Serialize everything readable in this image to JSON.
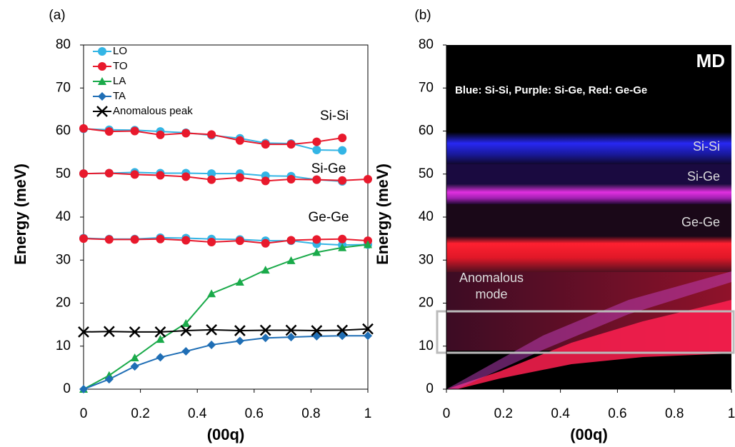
{
  "chart_data": [
    {
      "type": "line",
      "panel": "(a)",
      "ylabel": "Energy (meV)",
      "xlabel": "(00q)",
      "xlim": [
        0,
        1
      ],
      "ylim": [
        0,
        80
      ],
      "xticks": [
        0,
        0.2,
        0.4,
        0.6,
        0.8,
        1
      ],
      "yticks": [
        0,
        10,
        20,
        30,
        40,
        50,
        60,
        70,
        80
      ],
      "legend": "top-left",
      "x": [
        0,
        0.09,
        0.18,
        0.27,
        0.36,
        0.45,
        0.55,
        0.64,
        0.73,
        0.82,
        0.91,
        1
      ],
      "series": [
        {
          "name": "LO",
          "color": "#33b5e5",
          "marker": "circle",
          "branches": [
            [
              60.5,
              60.3,
              60.2,
              59.9,
              59.6,
              59,
              58.3,
              57.2,
              57.1,
              55.6,
              55.5,
              null
            ],
            [
              50.1,
              50.2,
              50.4,
              50.2,
              50.2,
              50.1,
              50.1,
              49.6,
              49.5,
              48.7,
              48.3,
              null
            ],
            [
              35.1,
              34.9,
              34.9,
              35.2,
              35.1,
              34.9,
              34.8,
              34.5,
              34.5,
              33.8,
              33.5,
              33.6
            ]
          ]
        },
        {
          "name": "TO",
          "color": "#e8192c",
          "marker": "circle",
          "branches": [
            [
              60.6,
              59.9,
              60,
              59.1,
              59.5,
              59.2,
              57.8,
              56.9,
              56.9,
              57.5,
              58.4,
              null
            ],
            [
              50.1,
              50.2,
              49.9,
              49.7,
              49.4,
              48.7,
              49.2,
              48.4,
              48.8,
              48.7,
              48.5,
              48.8
            ],
            [
              35,
              34.8,
              34.8,
              34.9,
              34.6,
              34.2,
              34.5,
              33.9,
              34.6,
              34.8,
              34.9,
              34.5
            ]
          ]
        },
        {
          "name": "LA",
          "color": "#1aaa4a",
          "marker": "triangle",
          "branches": [
            [
              0,
              3.2,
              7.3,
              11.6,
              15.3,
              22.2,
              24.9,
              27.7,
              29.9,
              31.8,
              32.9,
              33.6
            ]
          ]
        },
        {
          "name": "TA",
          "color": "#1f6eb5",
          "marker": "diamond",
          "branches": [
            [
              0,
              2.3,
              5.3,
              7.4,
              8.8,
              10.3,
              11.2,
              11.9,
              12.1,
              12.3,
              12.4,
              12.4
            ]
          ]
        },
        {
          "name": "Anomalous peak",
          "color": "#000000",
          "marker": "x",
          "branches": [
            [
              13.3,
              13.4,
              13.3,
              13.3,
              13.6,
              13.8,
              13.6,
              13.7,
              13.7,
              13.6,
              13.7,
              14
            ]
          ]
        }
      ],
      "annotations": [
        "Si-Si",
        "Si-Ge",
        "Ge-Ge"
      ]
    },
    {
      "type": "heatmap",
      "panel": "(b)",
      "ylabel": "Energy (meV)",
      "xlabel": "(00q)",
      "xlim": [
        0,
        1
      ],
      "ylim": [
        0,
        80
      ],
      "xticks": [
        0,
        0.2,
        0.4,
        0.6,
        0.8,
        1
      ],
      "yticks": [
        0,
        10,
        20,
        30,
        40,
        50,
        60,
        70,
        80
      ],
      "title": "MD",
      "subtitle": "Blue: Si-Si, Purple: Si-Ge, Red: Ge-Ge",
      "annotations": [
        "Si-Si",
        "Si-Ge",
        "Ge-Ge",
        "Anomalous",
        "mode"
      ]
    }
  ]
}
